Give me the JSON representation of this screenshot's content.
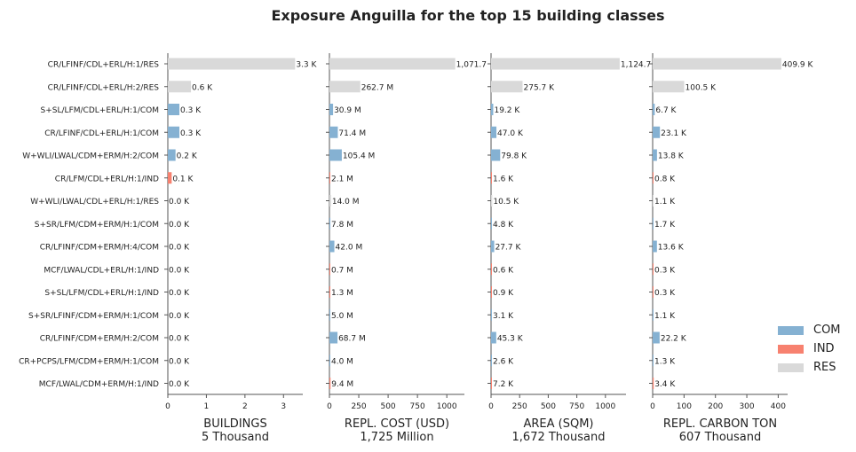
{
  "title": "Exposure Anguilla for the top 15 building classes",
  "colors": {
    "COM": "#85b1d2",
    "IND": "#f7816f",
    "RES": "#d9d9d9"
  },
  "legend": [
    {
      "label": "COM",
      "key": "COM"
    },
    {
      "label": "IND",
      "key": "IND"
    },
    {
      "label": "RES",
      "key": "RES"
    }
  ],
  "chart_data": {
    "type": "bar",
    "orientation": "horizontal",
    "categories": [
      "CR/LFINF/CDL+ERL/H:1/RES",
      "CR/LFINF/CDL+ERL/H:2/RES",
      "S+SL/LFM/CDL+ERL/H:1/COM",
      "CR/LFINF/CDL+ERL/H:1/COM",
      "W+WLI/LWAL/CDM+ERM/H:2/COM",
      "CR/LFM/CDL+ERL/H:1/IND",
      "W+WLI/LWAL/CDL+ERL/H:1/RES",
      "S+SR/LFM/CDM+ERM/H:1/COM",
      "CR/LFINF/CDM+ERM/H:4/COM",
      "MCF/LWAL/CDL+ERL/H:1/IND",
      "S+SL/LFM/CDL+ERL/H:1/IND",
      "S+SR/LFINF/CDM+ERM/H:1/COM",
      "CR/LFINF/CDM+ERM/H:2/COM",
      "CR+PCPS/LFM/CDM+ERM/H:1/COM",
      "MCF/LWAL/CDM+ERM/H:1/IND"
    ],
    "occupancy": [
      "RES",
      "RES",
      "COM",
      "COM",
      "COM",
      "IND",
      "RES",
      "COM",
      "COM",
      "IND",
      "IND",
      "COM",
      "COM",
      "COM",
      "IND"
    ],
    "panels": [
      {
        "xlabel": "BUILDINGS",
        "total": "5 Thousand",
        "xlim": [
          0,
          3.5
        ],
        "ticks": [
          0,
          1,
          2,
          3
        ],
        "tick_labels": [
          "0",
          "1",
          "2",
          "3"
        ],
        "values": [
          3.3,
          0.6,
          0.3,
          0.3,
          0.2,
          0.1,
          0.0,
          0.0,
          0.0,
          0.0,
          0.0,
          0.0,
          0.0,
          0.0,
          0.0
        ],
        "labels": [
          "3.3 K",
          "0.6 K",
          "0.3 K",
          "0.3 K",
          "0.2 K",
          "0.1 K",
          "0.0 K",
          "0.0 K",
          "0.0 K",
          "0.0 K",
          "0.0 K",
          "0.0 K",
          "0.0 K",
          "0.0 K",
          "0.0 K"
        ]
      },
      {
        "xlabel": "REPL. COST (USD)",
        "total": "1,725 Million",
        "xlim": [
          0,
          1150
        ],
        "ticks": [
          0,
          250,
          500,
          750,
          1000
        ],
        "tick_labels": [
          "0",
          "250",
          "500",
          "750",
          "1000"
        ],
        "values": [
          1071.7,
          262.7,
          30.9,
          71.4,
          105.4,
          2.1,
          14.0,
          7.8,
          42.0,
          0.7,
          1.3,
          5.0,
          68.7,
          4.0,
          9.4
        ],
        "labels": [
          "1,071.7",
          "262.7 M",
          "30.9 M",
          "71.4 M",
          "105.4 M",
          "2.1 M",
          "14.0 M",
          "7.8 M",
          "42.0 M",
          "0.7 M",
          "1.3 M",
          "5.0 M",
          "68.7 M",
          "4.0 M",
          "9.4 M"
        ]
      },
      {
        "xlabel": "AREA (SQM)",
        "total": "1,672 Thousand",
        "xlim": [
          0,
          1180
        ],
        "ticks": [
          0,
          250,
          500,
          750,
          1000
        ],
        "tick_labels": [
          "0",
          "250",
          "500",
          "750",
          "1000"
        ],
        "values": [
          1124.7,
          275.7,
          19.2,
          47.0,
          79.8,
          1.6,
          10.5,
          4.8,
          27.7,
          0.6,
          0.9,
          3.1,
          45.3,
          2.6,
          7.2
        ],
        "labels": [
          "1,124.7",
          "275.7 K",
          "19.2 K",
          "47.0 K",
          "79.8 K",
          "1.6 K",
          "10.5 K",
          "4.8 K",
          "27.7 K",
          "0.6 K",
          "0.9 K",
          "3.1 K",
          "45.3 K",
          "2.6 K",
          "7.2 K"
        ]
      },
      {
        "xlabel": "REPL. CARBON TON",
        "total": "607 Thousand",
        "xlim": [
          0,
          430
        ],
        "ticks": [
          0,
          100,
          200,
          300,
          400
        ],
        "tick_labels": [
          "0",
          "100",
          "200",
          "300",
          "400"
        ],
        "values": [
          409.9,
          100.5,
          6.7,
          23.1,
          13.8,
          0.8,
          1.1,
          1.7,
          13.6,
          0.3,
          0.3,
          1.1,
          22.2,
          1.3,
          3.4
        ],
        "labels": [
          "409.9 K",
          "100.5 K",
          "6.7 K",
          "23.1 K",
          "13.8 K",
          "0.8 K",
          "1.1 K",
          "1.7 K",
          "13.6 K",
          "0.3 K",
          "0.3 K",
          "1.1 K",
          "22.2 K",
          "1.3 K",
          "3.4 K"
        ]
      }
    ],
    "legend_position": "lower right",
    "grid": false
  }
}
